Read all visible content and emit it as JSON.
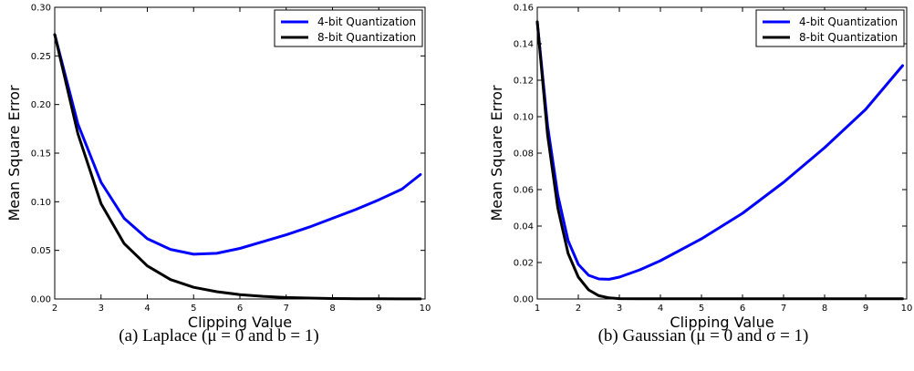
{
  "chart_data": [
    {
      "type": "line",
      "caption": "(a) Laplace (μ = 0 and b = 1)",
      "xlabel": "Clipping Value",
      "ylabel": "Mean Square Error",
      "xlim": [
        2,
        10
      ],
      "ylim": [
        0,
        0.3
      ],
      "x_ticks": [
        2,
        3,
        4,
        5,
        6,
        7,
        8,
        9,
        10
      ],
      "x_tick_labels": [
        "2",
        "3",
        "4",
        "5",
        "6",
        "7",
        "8",
        "9",
        "10"
      ],
      "y_ticks": [
        0,
        0.05,
        0.1,
        0.15,
        0.2,
        0.25,
        0.3
      ],
      "y_tick_labels": [
        "0.00",
        "0.05",
        "0.10",
        "0.15",
        "0.20",
        "0.25",
        "0.30"
      ],
      "grid": false,
      "legend_position": "top-right",
      "x": [
        2.0,
        2.5,
        3.0,
        3.5,
        4.0,
        4.5,
        5.0,
        5.5,
        6.0,
        6.5,
        7.0,
        7.5,
        8.0,
        8.5,
        9.0,
        9.5,
        9.9
      ],
      "series": [
        {
          "name": "4-bit Quantization",
          "color": "#0000ff",
          "values": [
            0.272,
            0.18,
            0.12,
            0.083,
            0.062,
            0.051,
            0.046,
            0.047,
            0.052,
            0.059,
            0.066,
            0.074,
            0.083,
            0.092,
            0.102,
            0.113,
            0.128
          ]
        },
        {
          "name": "8-bit Quantization",
          "color": "#000000",
          "values": [
            0.272,
            0.17,
            0.098,
            0.057,
            0.034,
            0.02,
            0.012,
            0.0075,
            0.0045,
            0.0027,
            0.0015,
            0.0009,
            0.0005,
            0.0003,
            0.0002,
            0.0001,
            0.0001
          ]
        }
      ]
    },
    {
      "type": "line",
      "caption": "(b) Gaussian (μ = 0 and σ = 1)",
      "xlabel": "Clipping Value",
      "ylabel": "Mean Square Error",
      "xlim": [
        1,
        10
      ],
      "ylim": [
        0,
        0.16
      ],
      "x_ticks": [
        1,
        2,
        3,
        4,
        5,
        6,
        7,
        8,
        9,
        10
      ],
      "x_tick_labels": [
        "1",
        "2",
        "3",
        "4",
        "5",
        "6",
        "7",
        "8",
        "9",
        "10"
      ],
      "y_ticks": [
        0,
        0.02,
        0.04,
        0.06,
        0.08,
        0.1,
        0.12,
        0.14,
        0.16
      ],
      "y_tick_labels": [
        "0.00",
        "0.02",
        "0.04",
        "0.06",
        "0.08",
        "0.10",
        "0.12",
        "0.14",
        "0.16"
      ],
      "grid": false,
      "legend_position": "top-right",
      "x": [
        1.0,
        1.25,
        1.5,
        1.75,
        2.0,
        2.25,
        2.5,
        2.75,
        3.0,
        3.5,
        4.0,
        5.0,
        6.0,
        7.0,
        8.0,
        9.0,
        9.9
      ],
      "series": [
        {
          "name": "4-bit Quantization",
          "color": "#0000ff",
          "values": [
            0.152,
            0.095,
            0.057,
            0.032,
            0.019,
            0.013,
            0.011,
            0.0108,
            0.012,
            0.016,
            0.021,
            0.033,
            0.047,
            0.064,
            0.083,
            0.104,
            0.128
          ]
        },
        {
          "name": "8-bit Quantization",
          "color": "#000000",
          "values": [
            0.152,
            0.09,
            0.05,
            0.025,
            0.012,
            0.005,
            0.0018,
            0.0006,
            0.0002,
            0.0001,
            0.0001,
            0.0001,
            0.0001,
            0.0001,
            0.0001,
            0.0001,
            0.0001
          ]
        }
      ]
    }
  ]
}
